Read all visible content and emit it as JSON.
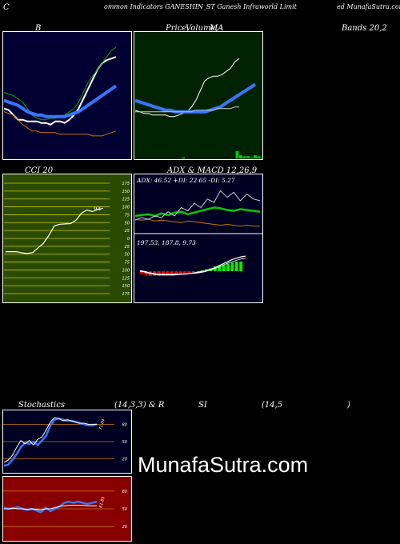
{
  "header": {
    "left": "C",
    "mid": "ommon  Indicators GANESHIN_ST Ganesh Infraworld Limit",
    "right": "ed MunafaSutra.com"
  },
  "titles": {
    "bb_left": "B",
    "price_a": "Price,",
    "price_b": "Volume,",
    "price_c": "MA",
    "bands": "Bands 20,2",
    "cci": "CCI 20",
    "adx": "ADX  & MACD 12,26,9",
    "stoch_a": "Stochastics",
    "stoch_b": "(14,3,3) & R",
    "stoch_c": "SI",
    "stoch_d": "(14,5",
    "stoch_e": ")"
  },
  "watermark": "MunafaSutra.com",
  "colors": {
    "bb_bg": "#000033",
    "price_bg": "#002200",
    "cci_bg": "#2a4a00",
    "adx_bg": "#000022",
    "stoch_bg": "#000022",
    "rsi_bg": "#880000",
    "blue": "#3377ff",
    "green": "#00cc00",
    "orange": "#cc7700",
    "white": "#ffffff"
  },
  "chart_data": [
    {
      "type": "line",
      "name_ref": "bollinger",
      "series": [
        {
          "color": "#ffffff",
          "values": [
            52,
            51,
            48,
            45,
            45,
            44,
            44,
            44,
            43,
            43,
            42,
            44,
            44,
            43,
            45,
            48,
            52,
            58,
            64,
            70,
            76,
            80,
            82,
            83,
            84
          ]
        },
        {
          "color": "#00aa00",
          "values": [
            62,
            61,
            60,
            58,
            56,
            52,
            48,
            46,
            45,
            45,
            46,
            46,
            47,
            48,
            50,
            52,
            56,
            62,
            68,
            72,
            76,
            80,
            84,
            88,
            90
          ]
        },
        {
          "color": "#3377ff",
          "values": [
            57,
            56,
            55,
            54,
            52,
            50,
            49,
            48,
            48,
            47,
            47,
            47,
            47,
            47,
            48,
            49,
            50,
            52,
            54,
            56,
            58,
            60,
            62,
            64,
            66
          ]
        },
        {
          "color": "#cc7700",
          "values": [
            50,
            49,
            48,
            45,
            42,
            40,
            38,
            38,
            37,
            37,
            37,
            37,
            36,
            36,
            36,
            36,
            36,
            36,
            36,
            35,
            35,
            35,
            36,
            37,
            38
          ]
        }
      ]
    },
    {
      "type": "line",
      "name_ref": "price_volume_ma",
      "series": [
        {
          "color": "#ffffff",
          "values": [
            56,
            55,
            54,
            54,
            53,
            53,
            53,
            53,
            52,
            52,
            53,
            54,
            55,
            58,
            62,
            68,
            74,
            76,
            77,
            77,
            78,
            80,
            82,
            86,
            88
          ]
        },
        {
          "color": "#3377ff",
          "values": [
            62,
            61,
            60,
            59,
            58,
            57,
            56,
            56,
            55,
            55,
            55,
            55,
            55,
            55,
            55,
            56,
            57,
            58,
            60,
            62,
            64,
            66,
            68,
            70,
            72
          ]
        },
        {
          "color": "#cccccc",
          "values": [
            55,
            55,
            55,
            55,
            55,
            55,
            55,
            55,
            55,
            55,
            55,
            55,
            55,
            55,
            56,
            56,
            56,
            56,
            56,
            57,
            57,
            57,
            57,
            58,
            58
          ]
        }
      ],
      "volume": [
        1,
        0,
        0,
        0,
        0,
        0,
        0,
        0,
        0,
        0,
        0,
        0,
        0,
        0,
        0,
        7,
        3,
        2,
        2,
        1,
        3,
        2,
        1,
        2,
        14,
        5,
        2,
        2,
        1
      ]
    },
    {
      "type": "line",
      "name_ref": "cci",
      "title": "CCI 20",
      "ylim": [
        -175,
        175
      ],
      "yticks": [
        175,
        150,
        125,
        100,
        75,
        50,
        25,
        0,
        -25,
        -50,
        -75,
        -100,
        -125,
        -150,
        -175
      ],
      "tick_labels": [
        "175",
        "150",
        "125",
        "100",
        "75",
        "50",
        "25",
        "0",
        "25",
        "50",
        "75",
        "100",
        "125",
        "150",
        "175"
      ],
      "last_label": "94",
      "values": [
        -42,
        -42,
        -42,
        -46,
        -48,
        -45,
        -30,
        -15,
        10,
        40,
        45,
        46,
        47,
        58,
        80,
        90,
        85,
        92,
        95
      ]
    },
    {
      "type": "line",
      "name_ref": "adx",
      "annotation": "ADX: 46.52  +DI: 22.65 -DI: 5.27",
      "series": [
        {
          "color": "#00cc00",
          "values": [
            40,
            41,
            42,
            40,
            43,
            41,
            44,
            45,
            42,
            44,
            46,
            48,
            50,
            49,
            47,
            46,
            48,
            47,
            46,
            45
          ]
        },
        {
          "color": "#cc7700",
          "values": [
            36,
            35,
            36,
            34,
            35,
            34,
            33,
            32,
            34,
            33,
            32,
            31,
            30,
            29,
            30,
            29,
            28,
            29,
            28,
            28
          ]
        },
        {
          "color": "#cccccc",
          "values": [
            35,
            38,
            36,
            40,
            38,
            45,
            40,
            50,
            46,
            55,
            50,
            60,
            56,
            70,
            62,
            68,
            58,
            66,
            60,
            58
          ]
        }
      ]
    },
    {
      "type": "bar",
      "name_ref": "macd",
      "annotation": "197.53,  187.8,  9.73",
      "values": [
        -3,
        -4,
        -5,
        -5,
        -5,
        -5,
        -5,
        -5,
        -4,
        -4,
        -3,
        -2,
        -1,
        0,
        1,
        2,
        3,
        5,
        6,
        7,
        8,
        9,
        10,
        10
      ]
    },
    {
      "type": "line",
      "name_ref": "stochastics",
      "yticks": [
        80,
        50,
        20
      ],
      "tick_labels": [
        "80",
        "50",
        "20"
      ],
      "last_label": "71.04",
      "series": [
        {
          "color": "#3377ff",
          "values": [
            8,
            10,
            18,
            28,
            40,
            48,
            46,
            50,
            44,
            52,
            60,
            78,
            88,
            90,
            88,
            86,
            86,
            84,
            82,
            80,
            78,
            78,
            80
          ]
        },
        {
          "color": "#ffffff",
          "values": [
            14,
            18,
            26,
            40,
            52,
            46,
            52,
            44,
            54,
            58,
            70,
            84,
            92,
            90,
            86,
            88,
            86,
            84,
            82,
            82,
            80,
            80,
            80
          ]
        }
      ]
    },
    {
      "type": "line",
      "name_ref": "rsi",
      "yticks": [
        80,
        50,
        20
      ],
      "tick_labels": [
        "80",
        "50",
        "20"
      ],
      "last_label": "61.85",
      "series": [
        {
          "color": "#3377ff",
          "values": [
            52,
            50,
            51,
            53,
            50,
            48,
            50,
            47,
            44,
            52,
            46,
            50,
            54,
            60,
            62,
            60,
            62,
            60,
            58,
            60,
            62
          ]
        },
        {
          "color": "#ffffff",
          "values": [
            50,
            50,
            51,
            50,
            50,
            49,
            50,
            49,
            48,
            50,
            50,
            52,
            54,
            55,
            56,
            56,
            56,
            56,
            55,
            55,
            55
          ]
        }
      ]
    }
  ]
}
